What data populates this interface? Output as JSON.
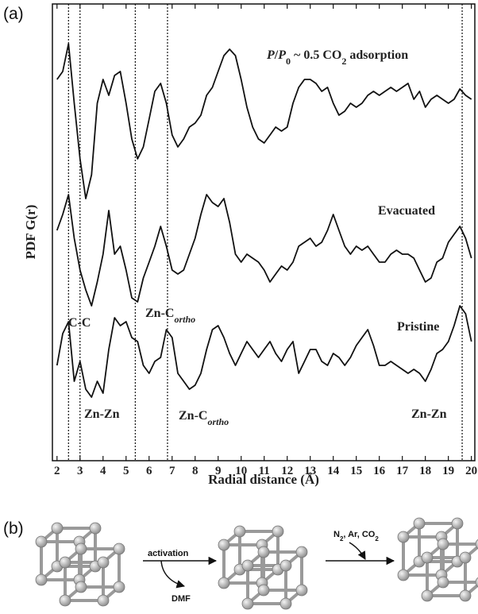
{
  "chart_data": {
    "type": "line",
    "ylabel": "PDF G(r)",
    "xlabel": "Radial distance (Å)",
    "x": [
      2,
      2.25,
      2.5,
      2.75,
      3,
      3.25,
      3.5,
      3.75,
      4,
      4.25,
      4.5,
      4.75,
      5,
      5.25,
      5.5,
      5.75,
      6,
      6.25,
      6.5,
      6.75,
      7,
      7.25,
      7.5,
      7.75,
      8,
      8.25,
      8.5,
      8.75,
      9,
      9.25,
      9.5,
      9.75,
      10,
      10.25,
      10.5,
      10.75,
      11,
      11.25,
      11.5,
      11.75,
      12,
      12.25,
      12.5,
      12.75,
      13,
      13.25,
      13.5,
      13.75,
      14,
      14.25,
      14.5,
      14.75,
      15,
      15.25,
      15.5,
      15.75,
      16,
      16.25,
      16.5,
      16.75,
      17,
      17.25,
      17.5,
      17.75,
      18,
      18.25,
      18.5,
      18.75,
      19,
      19.25,
      19.5,
      19.75,
      20
    ],
    "series": [
      {
        "color": "#111111",
        "values": [
          480,
          490,
          525,
          450,
          380,
          330,
          360,
          450,
          480,
          460,
          485,
          490,
          450,
          405,
          380,
          395,
          430,
          465,
          475,
          450,
          410,
          395,
          405,
          420,
          425,
          435,
          460,
          470,
          490,
          510,
          518,
          510,
          480,
          445,
          420,
          405,
          400,
          410,
          420,
          415,
          420,
          450,
          470,
          480,
          480,
          475,
          465,
          470,
          450,
          435,
          440,
          450,
          445,
          450,
          460,
          465,
          460,
          465,
          470,
          465,
          470,
          475,
          455,
          465,
          445,
          455,
          460,
          455,
          450,
          455,
          468,
          460,
          455
        ]
      },
      {
        "color": "#111111",
        "values": [
          290,
          310,
          335,
          280,
          240,
          215,
          195,
          225,
          260,
          315,
          260,
          270,
          240,
          205,
          200,
          230,
          250,
          270,
          295,
          270,
          240,
          235,
          240,
          260,
          280,
          310,
          335,
          325,
          320,
          330,
          300,
          260,
          250,
          260,
          255,
          250,
          240,
          225,
          235,
          245,
          240,
          250,
          270,
          275,
          280,
          270,
          275,
          290,
          310,
          290,
          270,
          260,
          270,
          265,
          270,
          260,
          250,
          250,
          260,
          265,
          260,
          260,
          255,
          240,
          225,
          230,
          250,
          255,
          275,
          285,
          295,
          280,
          255
        ]
      },
      {
        "color": "#111111",
        "values": [
          120,
          160,
          175,
          100,
          125,
          90,
          80,
          100,
          85,
          140,
          180,
          170,
          175,
          155,
          150,
          120,
          110,
          125,
          130,
          165,
          155,
          110,
          100,
          90,
          95,
          110,
          140,
          165,
          170,
          155,
          135,
          120,
          135,
          150,
          140,
          130,
          140,
          150,
          135,
          125,
          140,
          150,
          110,
          125,
          140,
          140,
          125,
          120,
          135,
          130,
          120,
          130,
          145,
          155,
          165,
          145,
          120,
          120,
          125,
          120,
          115,
          110,
          115,
          110,
          100,
          115,
          135,
          140,
          150,
          170,
          195,
          185,
          150
        ]
      }
    ],
    "reference_lines": [
      2.5,
      3.0,
      5.4,
      6.8,
      19.6
    ],
    "annotations": [
      [
        "P",
        "/",
        "P",
        "0",
        " ~ 0.5 CO",
        "2",
        " adsorption"
      ],
      [
        "Evacuated"
      ],
      [
        "Pristine"
      ],
      [
        "C-C"
      ],
      [
        "Zn-C",
        "ortho"
      ],
      [
        "Zn-Zn"
      ],
      [
        "Zn-C",
        "ortho"
      ],
      [
        "Zn-Zn"
      ]
    ],
    "xlim": [
      1.8,
      20.15
    ],
    "ylim": [
      0,
      575
    ],
    "xticks": [
      2,
      3,
      4,
      5,
      6,
      7,
      8,
      9,
      10,
      11,
      12,
      13,
      14,
      15,
      16,
      17,
      18,
      19,
      20
    ]
  },
  "panel_labels": [
    "(a)",
    "(b)"
  ],
  "scheme": {
    "step1": "activation",
    "byproduct": "DMF",
    "step2": [
      "N",
      "2",
      ", Ar, CO",
      "2"
    ]
  }
}
